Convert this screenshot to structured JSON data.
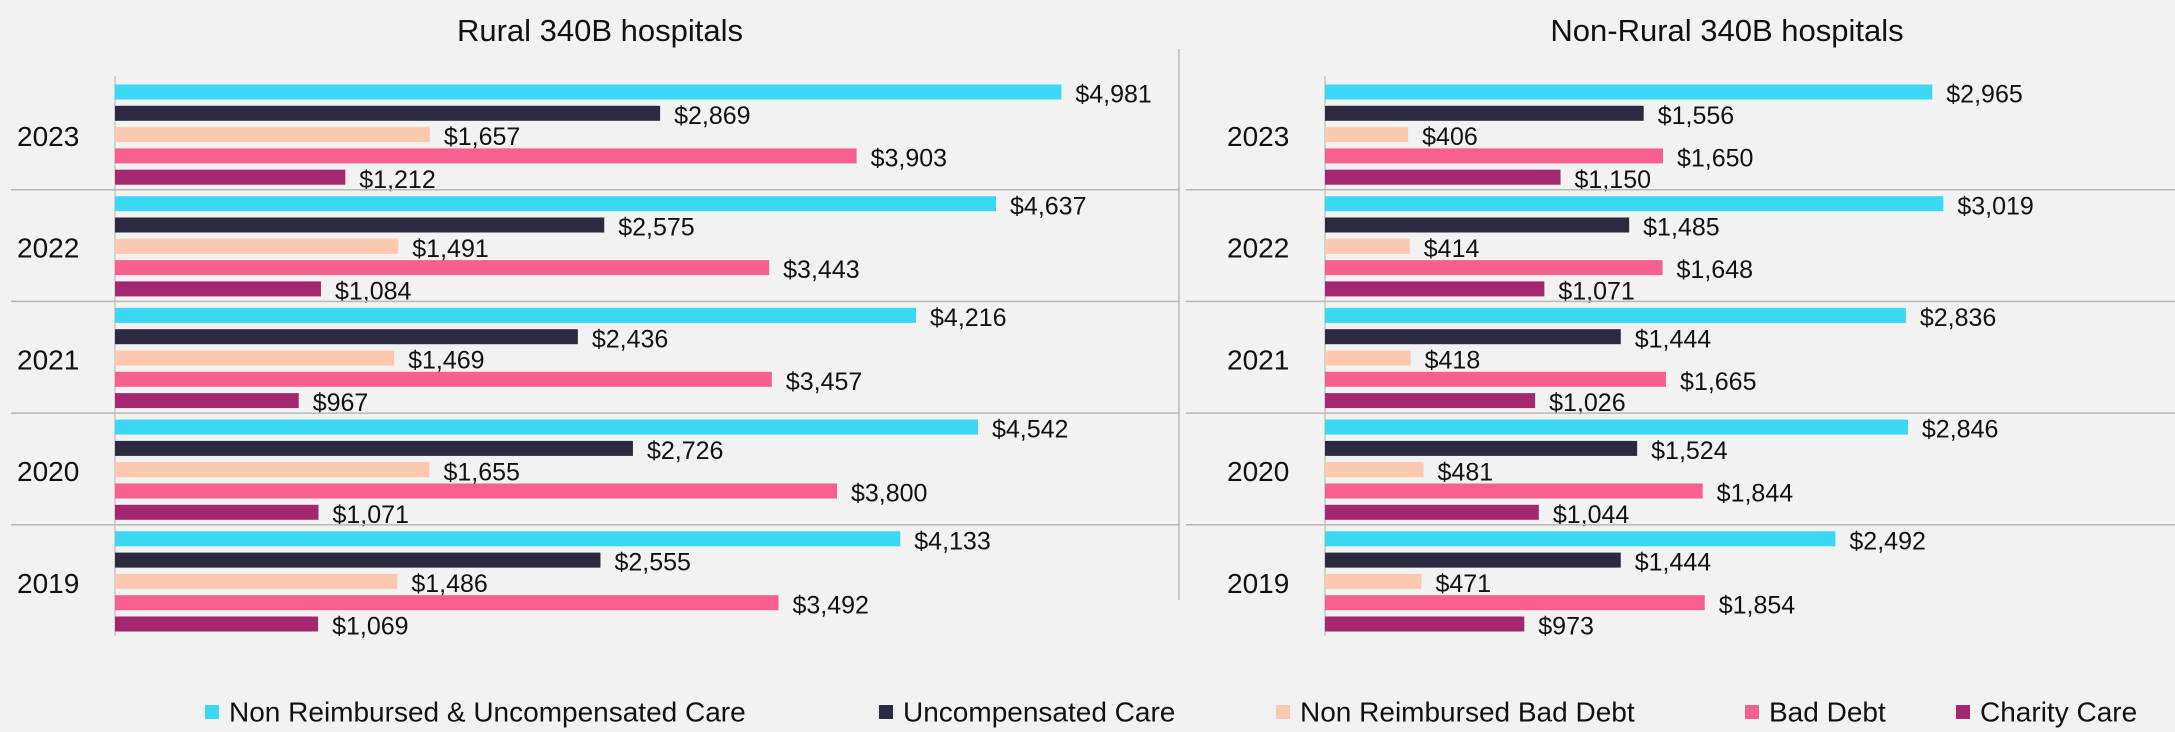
{
  "chart_data": [
    {
      "type": "bar",
      "orientation": "horizontal",
      "title": "Rural 340B hospitals",
      "categories": [
        "2023",
        "2022",
        "2021",
        "2020",
        "2019"
      ],
      "xlim": [
        0,
        5600
      ],
      "series": [
        {
          "name": "Non Reimbursed & Uncompensated Care",
          "color": "#3ad8f5",
          "values": [
            4981,
            4637,
            4216,
            4542,
            4133
          ],
          "value_labels": [
            "$4,981",
            "$4,637",
            "$4,216",
            "$4,542",
            "$4,133"
          ]
        },
        {
          "name": "Uncompensated Care",
          "color": "#2b2a40",
          "values": [
            2869,
            2575,
            2436,
            2726,
            2555
          ],
          "value_labels": [
            "$2,869",
            "$2,575",
            "$2,436",
            "$2,726",
            "$2,555"
          ]
        },
        {
          "name": "Non Reimbursed Bad Debt",
          "color": "#fcc8b0",
          "values": [
            1657,
            1491,
            1469,
            1655,
            1486
          ],
          "value_labels": [
            "$1,657",
            "$1,491",
            "$1,469",
            "$1,655",
            "$1,486"
          ]
        },
        {
          "name": "Bad Debt",
          "color": "#f75f8f",
          "values": [
            3903,
            3443,
            3457,
            3800,
            3492
          ],
          "value_labels": [
            "$3,903",
            "$3,443",
            "$3,457",
            "$3,800",
            "$3,492"
          ]
        },
        {
          "name": "Charity Care",
          "color": "#a3286f",
          "values": [
            1212,
            1084,
            967,
            1071,
            1069
          ],
          "value_labels": [
            "$1,212",
            "$1,084",
            "$967",
            "$1,071",
            "$1,069"
          ]
        }
      ]
    },
    {
      "type": "bar",
      "orientation": "horizontal",
      "title": "Non-Rural 340B hospitals",
      "categories": [
        "2023",
        "2022",
        "2021",
        "2020",
        "2019"
      ],
      "xlim": [
        0,
        4150
      ],
      "series": [
        {
          "name": "Non Reimbursed & Uncompensated Care",
          "color": "#3ad8f5",
          "values": [
            2965,
            3019,
            2836,
            2846,
            2492
          ],
          "value_labels": [
            "$2,965",
            "$3,019",
            "$2,836",
            "$2,846",
            "$2,492"
          ]
        },
        {
          "name": "Uncompensated Care",
          "color": "#2b2a40",
          "values": [
            1556,
            1485,
            1444,
            1524,
            1444
          ],
          "value_labels": [
            "$1,556",
            "$1,485",
            "$1,444",
            "$1,524",
            "$1,444"
          ]
        },
        {
          "name": "Non Reimbursed Bad Debt",
          "color": "#fcc8b0",
          "values": [
            406,
            414,
            418,
            481,
            471
          ],
          "value_labels": [
            "$406",
            "$414",
            "$418",
            "$481",
            "$471"
          ]
        },
        {
          "name": "Bad Debt",
          "color": "#f75f8f",
          "values": [
            1650,
            1648,
            1665,
            1844,
            1854
          ],
          "value_labels": [
            "$1,650",
            "$1,648",
            "$1,665",
            "$1,844",
            "$1,854"
          ]
        },
        {
          "name": "Charity Care",
          "color": "#a3286f",
          "values": [
            1150,
            1071,
            1026,
            1044,
            973
          ],
          "value_labels": [
            "$1,150",
            "$1,071",
            "$1,026",
            "$1,044",
            "$973"
          ]
        }
      ]
    }
  ]
}
